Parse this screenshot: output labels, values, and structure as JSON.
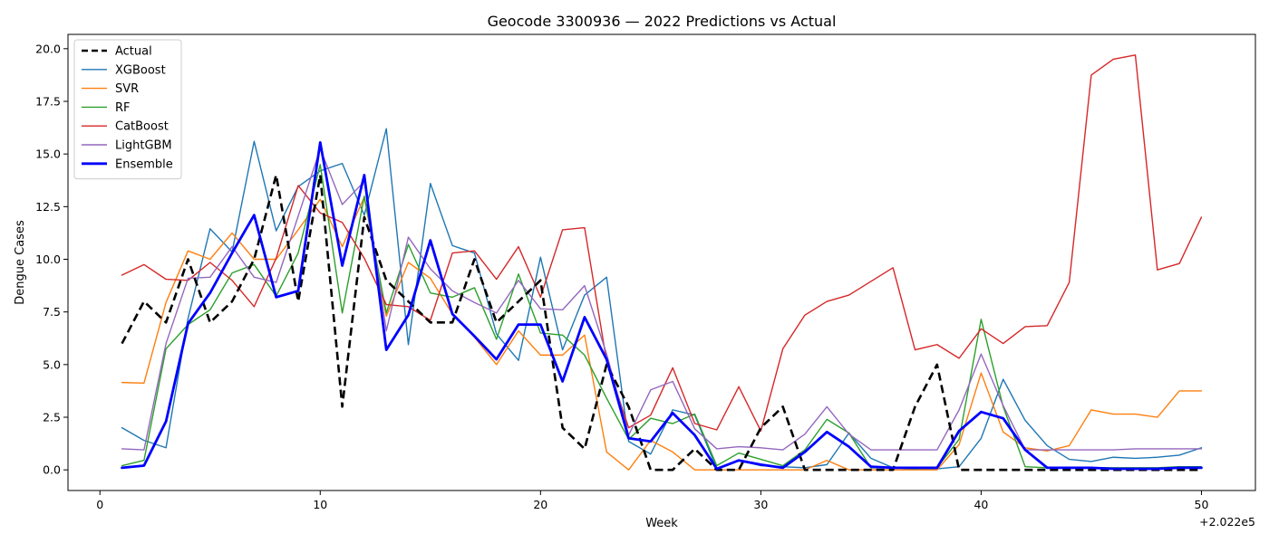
{
  "chart_data": {
    "type": "line",
    "title": "Geocode 3300936 — 2022 Predictions vs Actual",
    "xlabel": "Week",
    "ylabel": "Dengue Cases",
    "x_offset_label": "+2.022e5",
    "xlim": [
      -1.45,
      52.45
    ],
    "ylim": [
      -0.98,
      20.68
    ],
    "x_ticks": [
      0,
      10,
      20,
      30,
      40,
      50
    ],
    "y_ticks": [
      0.0,
      2.5,
      5.0,
      7.5,
      10.0,
      12.5,
      15.0,
      17.5,
      20.0
    ],
    "x_tick_labels": [
      "0",
      "10",
      "20",
      "30",
      "40",
      "50"
    ],
    "y_tick_labels": [
      "0.0",
      "2.5",
      "5.0",
      "7.5",
      "10.0",
      "12.5",
      "15.0",
      "17.5",
      "20.0"
    ],
    "grid": false,
    "legend_position": "upper-left",
    "x": [
      1,
      2,
      3,
      4,
      5,
      6,
      7,
      8,
      9,
      10,
      11,
      12,
      13,
      14,
      15,
      16,
      17,
      18,
      19,
      20,
      21,
      22,
      23,
      24,
      25,
      26,
      27,
      28,
      29,
      30,
      31,
      32,
      33,
      34,
      35,
      36,
      37,
      38,
      39,
      40,
      41,
      42,
      43,
      44,
      45,
      46,
      47,
      48,
      49,
      50
    ],
    "series": [
      {
        "name": "Actual",
        "color": "#000000",
        "width": 2.6,
        "dash": "9,5",
        "values": [
          6,
          8,
          7,
          10,
          7,
          8,
          10,
          14,
          8,
          14,
          3,
          12,
          9,
          8,
          7,
          7,
          10,
          7,
          8,
          9,
          2,
          1,
          5,
          3,
          0,
          0,
          1,
          0,
          0,
          2,
          3,
          0,
          0,
          0,
          0,
          0,
          3,
          5,
          0,
          0,
          0,
          0,
          0,
          0,
          0,
          0,
          0,
          0,
          0,
          0
        ]
      },
      {
        "name": "XGBoost",
        "color": "#1f77b4",
        "width": 1.4,
        "dash": "",
        "values": [
          2.0,
          1.4,
          1.05,
          7.2,
          11.45,
          10.35,
          15.6,
          11.35,
          13.45,
          14.2,
          14.55,
          12.1,
          16.2,
          5.95,
          13.6,
          10.65,
          10.3,
          6.45,
          5.2,
          10.1,
          5.7,
          8.3,
          9.15,
          1.35,
          0.75,
          2.85,
          2.6,
          0.05,
          0.45,
          0.2,
          0.15,
          0.1,
          0.25,
          1.75,
          0.55,
          0.1,
          0.05,
          0.05,
          0.15,
          1.5,
          4.3,
          2.35,
          1.15,
          0.5,
          0.4,
          0.6,
          0.55,
          0.6,
          0.7,
          1.05
        ]
      },
      {
        "name": "SVR",
        "color": "#ff7f0e",
        "width": 1.4,
        "dash": "",
        "values": [
          4.15,
          4.12,
          7.95,
          10.4,
          10.0,
          11.25,
          10.0,
          10.0,
          11.4,
          12.85,
          10.6,
          12.95,
          7.3,
          9.85,
          9.1,
          7.4,
          6.3,
          5.0,
          6.6,
          5.45,
          5.45,
          6.4,
          0.85,
          0.0,
          1.4,
          0.85,
          0.0,
          0.0,
          0.0,
          0.0,
          0.0,
          0.0,
          0.45,
          0.0,
          0.0,
          0.0,
          0.0,
          0.0,
          1.2,
          4.6,
          1.8,
          1.05,
          0.9,
          1.15,
          2.85,
          2.65,
          2.65,
          2.5,
          3.75,
          3.75
        ]
      },
      {
        "name": "RF",
        "color": "#2ca02c",
        "width": 1.4,
        "dash": "",
        "values": [
          0.2,
          0.45,
          5.75,
          6.9,
          7.6,
          9.35,
          9.75,
          8.25,
          10.3,
          14.5,
          7.45,
          13.0,
          7.45,
          10.7,
          8.4,
          8.2,
          8.65,
          6.2,
          9.3,
          6.5,
          6.4,
          5.45,
          3.4,
          1.45,
          2.45,
          2.2,
          2.65,
          0.2,
          0.8,
          0.5,
          0.2,
          0.95,
          2.4,
          1.75,
          0.1,
          0.1,
          0.05,
          0.1,
          1.45,
          7.15,
          3.0,
          0.15,
          0.1,
          0.1,
          0.1,
          0.1,
          0.1,
          0.1,
          0.15,
          0.15
        ]
      },
      {
        "name": "CatBoost",
        "color": "#d62728",
        "width": 1.4,
        "dash": "",
        "values": [
          9.25,
          9.75,
          9.05,
          9.0,
          9.85,
          9.0,
          7.75,
          10.05,
          13.5,
          12.2,
          11.75,
          10.05,
          7.85,
          7.75,
          7.1,
          10.3,
          10.4,
          9.05,
          10.6,
          8.2,
          11.4,
          11.5,
          5.15,
          2.0,
          2.6,
          4.85,
          2.2,
          1.9,
          3.95,
          1.85,
          5.75,
          7.35,
          8.0,
          8.3,
          8.95,
          9.6,
          5.7,
          5.95,
          5.3,
          6.7,
          6.0,
          6.8,
          6.85,
          8.9,
          18.75,
          19.5,
          19.7,
          9.5,
          9.8,
          12.0
        ]
      },
      {
        "name": "LightGBM",
        "color": "#9467bd",
        "width": 1.4,
        "dash": "",
        "values": [
          1.0,
          0.95,
          6.0,
          9.1,
          9.15,
          10.6,
          9.15,
          8.9,
          12.05,
          15.25,
          12.6,
          13.7,
          6.6,
          11.05,
          9.55,
          8.5,
          7.95,
          7.45,
          9.0,
          7.65,
          7.6,
          8.75,
          5.5,
          1.65,
          3.8,
          4.2,
          1.95,
          1.0,
          1.1,
          1.05,
          0.95,
          1.7,
          3.0,
          1.7,
          0.95,
          0.95,
          0.95,
          0.95,
          2.85,
          5.5,
          3.05,
          0.95,
          0.95,
          0.95,
          0.95,
          0.95,
          1.0,
          1.0,
          1.0,
          1.0
        ]
      },
      {
        "name": "Ensemble",
        "color": "#0000ff",
        "width": 2.8,
        "dash": "",
        "values": [
          0.1,
          0.2,
          2.3,
          6.95,
          8.4,
          10.3,
          12.1,
          8.2,
          8.5,
          15.55,
          9.7,
          14.0,
          5.7,
          7.35,
          10.9,
          7.4,
          6.35,
          5.25,
          6.9,
          6.9,
          4.2,
          7.25,
          5.25,
          1.5,
          1.35,
          2.7,
          1.65,
          0.05,
          0.45,
          0.25,
          0.1,
          0.85,
          1.8,
          1.1,
          0.15,
          0.1,
          0.1,
          0.1,
          1.85,
          2.75,
          2.45,
          0.95,
          0.1,
          0.1,
          0.1,
          0.05,
          0.05,
          0.05,
          0.1,
          0.1
        ]
      }
    ]
  }
}
